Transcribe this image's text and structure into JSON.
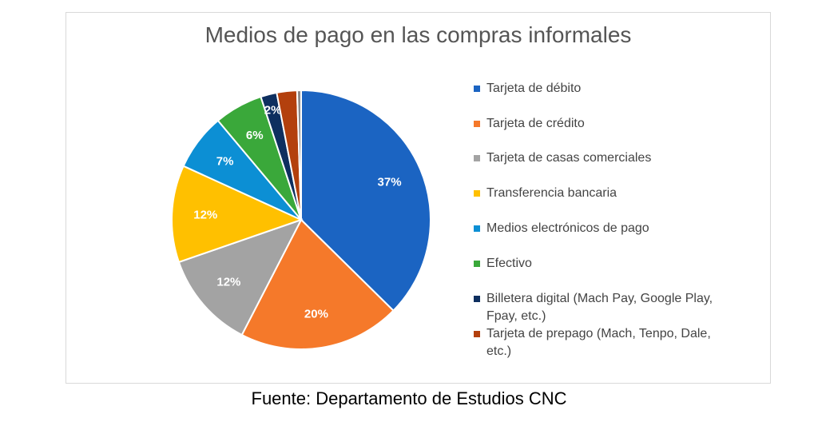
{
  "chart_data": {
    "type": "pie",
    "title": "Medios de pago en las compras informales",
    "source": "Fuente: Departamento de Estudios CNC",
    "categories": [
      "Tarjeta de débito",
      "Tarjeta de crédito",
      "Tarjeta de casas comerciales",
      "Transferencia bancaria",
      "Medios electrónicos de pago",
      "Efectivo",
      "Billetera digital (Mach Pay, Google Play, Fpay, etc.)",
      "Tarjeta de prepago (Mach, Tenpo, Dale, etc.)",
      null
    ],
    "values": [
      37,
      20,
      12,
      12,
      7,
      6,
      2,
      2.5,
      0.5
    ],
    "value_labels": [
      "37%",
      "20%",
      "12%",
      "12%",
      "7%",
      "6%",
      "2%",
      null,
      null
    ],
    "colors": [
      "#1b64c2",
      "#f5792a",
      "#a3a3a3",
      "#ffc000",
      "#0c8fd4",
      "#3aa83a",
      "#0e2f5f",
      "#b3400d",
      "#8c8c8c"
    ],
    "legend": "right"
  }
}
